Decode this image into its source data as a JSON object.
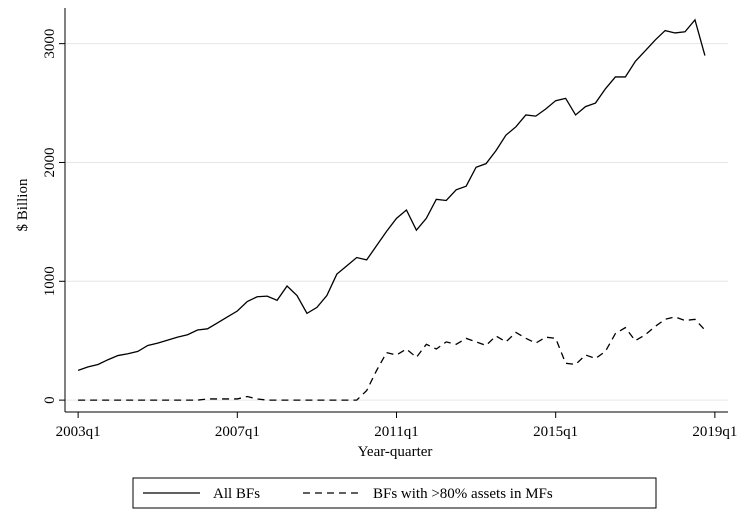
{
  "chart_data": {
    "type": "line",
    "x": [
      2003,
      2003.25,
      2003.5,
      2003.75,
      2004,
      2004.25,
      2004.5,
      2004.75,
      2005,
      2005.25,
      2005.5,
      2005.75,
      2006,
      2006.25,
      2006.5,
      2006.75,
      2007,
      2007.25,
      2007.5,
      2007.75,
      2008,
      2008.25,
      2008.5,
      2008.75,
      2009,
      2009.25,
      2009.5,
      2009.75,
      2010,
      2010.25,
      2010.5,
      2010.75,
      2011,
      2011.25,
      2011.5,
      2011.75,
      2012,
      2012.25,
      2012.5,
      2012.75,
      2013,
      2013.25,
      2013.5,
      2013.75,
      2014,
      2014.25,
      2014.5,
      2014.75,
      2015,
      2015.25,
      2015.5,
      2015.75,
      2016,
      2016.25,
      2016.5,
      2016.75,
      2017,
      2017.25,
      2017.5,
      2017.75,
      2018,
      2018.25,
      2018.5,
      2018.75
    ],
    "series": [
      {
        "name": "All BFs",
        "color": "#000000",
        "dash": "solid",
        "values": [
          250,
          280,
          300,
          340,
          375,
          390,
          410,
          460,
          480,
          505,
          530,
          550,
          590,
          600,
          650,
          700,
          750,
          830,
          870,
          875,
          840,
          960,
          880,
          730,
          780,
          880,
          1060,
          1130,
          1200,
          1180,
          1300,
          1420,
          1530,
          1600,
          1430,
          1530,
          1690,
          1680,
          1770,
          1800,
          1960,
          1990,
          2100,
          2230,
          2300,
          2400,
          2390,
          2450,
          2520,
          2540,
          2400,
          2470,
          2500,
          2620,
          2720,
          2720,
          2850,
          2940,
          3030,
          3110,
          3090,
          3100,
          3200,
          2900
        ]
      },
      {
        "name": "BFs with >80% assets in MFs",
        "color": "#000000",
        "dash": "dashed",
        "values": [
          0,
          0,
          0,
          0,
          0,
          0,
          0,
          0,
          0,
          0,
          0,
          0,
          0,
          10,
          10,
          10,
          10,
          30,
          10,
          0,
          0,
          0,
          0,
          0,
          0,
          0,
          0,
          0,
          0,
          80,
          250,
          400,
          380,
          430,
          360,
          470,
          430,
          490,
          470,
          520,
          490,
          460,
          540,
          490,
          570,
          520,
          480,
          530,
          520,
          310,
          300,
          380,
          350,
          410,
          560,
          610,
          500,
          550,
          620,
          680,
          700,
          670,
          680,
          590
        ]
      }
    ],
    "xlabel": "Year-quarter",
    "ylabel": "$ Billion",
    "xlim": [
      2002.67,
      2019.33
    ],
    "xticks": [
      {
        "value": 2003,
        "label": "2003q1"
      },
      {
        "value": 2007,
        "label": "2007q1"
      },
      {
        "value": 2011,
        "label": "2011q1"
      },
      {
        "value": 2015,
        "label": "2015q1"
      },
      {
        "value": 2019,
        "label": "2019q1"
      }
    ],
    "ylim": [
      -100,
      3300
    ],
    "yticks": [
      0,
      1000,
      2000,
      3000
    ],
    "grid": true,
    "legend": "bottom"
  }
}
